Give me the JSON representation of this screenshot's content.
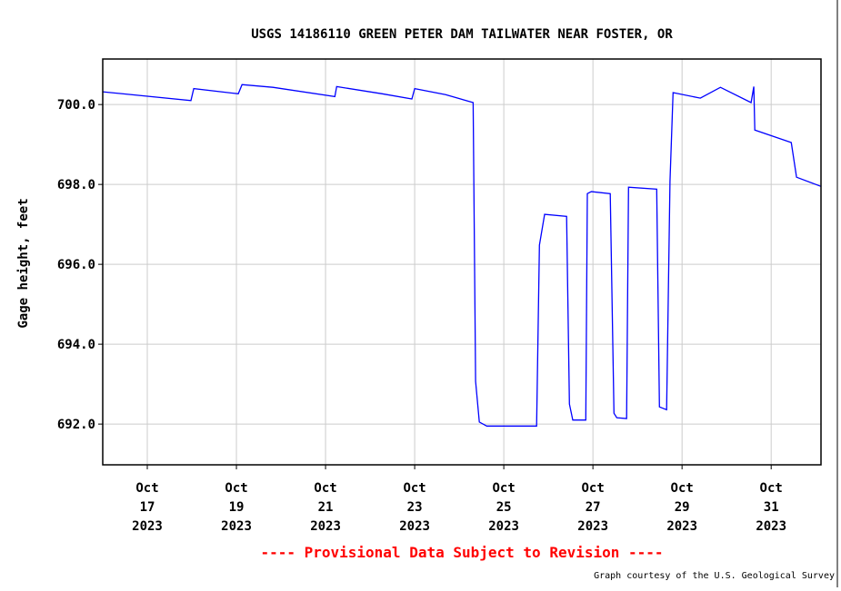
{
  "chart_data": {
    "type": "line",
    "title": "USGS 14186110 GREEN PETER DAM TAILWATER NEAR FOSTER, OR",
    "ylabel": "Gage height, feet",
    "annotations": [
      "---- Provisional Data Subject to Revision ----",
      "Graph courtesy of the U.S. Geological Survey"
    ],
    "annotation_colors": [
      "#ff0000",
      "#000000"
    ],
    "grid": true,
    "xlim": [
      "2023-10-16T00:00",
      "2023-11-01T02:50"
    ],
    "ylim": [
      690.98,
      701.14
    ],
    "xticks": [
      {
        "value": "2023-10-17T00:00",
        "label": "Oct\n17\n2023"
      },
      {
        "value": "2023-10-19T00:00",
        "label": "Oct\n19\n2023"
      },
      {
        "value": "2023-10-21T00:00",
        "label": "Oct\n21\n2023"
      },
      {
        "value": "2023-10-23T00:00",
        "label": "Oct\n23\n2023"
      },
      {
        "value": "2023-10-25T00:00",
        "label": "Oct\n25\n2023"
      },
      {
        "value": "2023-10-27T00:00",
        "label": "Oct\n27\n2023"
      },
      {
        "value": "2023-10-29T00:00",
        "label": "Oct\n29\n2023"
      },
      {
        "value": "2023-10-31T00:00",
        "label": "Oct\n31\n2023"
      }
    ],
    "yticks": [
      {
        "value": 692,
        "label": "692.0"
      },
      {
        "value": 694,
        "label": "694.0"
      },
      {
        "value": 696,
        "label": "696.0"
      },
      {
        "value": 698,
        "label": "698.0"
      },
      {
        "value": 700,
        "label": "700.0"
      }
    ],
    "x": [
      "2023-10-16T00:00",
      "2023-10-17T23:30",
      "2023-10-18T01:00",
      "2023-10-19T01:00",
      "2023-10-19T03:00",
      "2023-10-19T19:40",
      "2023-10-21T05:00",
      "2023-10-21T06:00",
      "2023-10-22T06:30",
      "2023-10-22T22:30",
      "2023-10-23T00:00",
      "2023-10-23T16:40",
      "2023-10-24T07:30",
      "2023-10-24T08:50",
      "2023-10-24T10:50",
      "2023-10-24T14:50",
      "2023-10-25T17:40",
      "2023-10-25T19:10",
      "2023-10-25T20:10",
      "2023-10-25T22:00",
      "2023-10-26T09:50",
      "2023-10-26T11:20",
      "2023-10-26T13:10",
      "2023-10-26T20:10",
      "2023-10-26T21:00",
      "2023-10-26T23:10",
      "2023-10-27T09:20",
      "2023-10-27T11:20",
      "2023-10-27T12:50",
      "2023-10-27T18:10",
      "2023-10-27T19:10",
      "2023-10-28T10:20",
      "2023-10-28T11:50",
      "2023-10-28T15:40",
      "2023-10-28T17:30",
      "2023-10-28T19:10",
      "2023-10-29T09:50",
      "2023-10-29T20:40",
      "2023-10-30T13:10",
      "2023-10-30T14:40",
      "2023-10-30T15:10",
      "2023-10-31T10:50",
      "2023-10-31T13:40",
      "2023-11-01T02:50"
    ],
    "series": [
      {
        "name": "Gage height",
        "color": "#0000ff",
        "values": [
          700.32,
          700.1,
          700.4,
          700.27,
          700.5,
          700.43,
          700.2,
          700.45,
          700.27,
          700.14,
          700.4,
          700.25,
          700.05,
          693.07,
          692.05,
          691.95,
          691.95,
          696.48,
          696.75,
          697.25,
          697.2,
          692.5,
          692.1,
          692.1,
          697.77,
          697.82,
          697.77,
          692.27,
          692.16,
          692.14,
          697.93,
          697.88,
          692.43,
          692.36,
          698.07,
          700.3,
          700.16,
          700.43,
          700.05,
          700.45,
          699.36,
          699.05,
          698.18,
          697.95
        ]
      }
    ]
  }
}
